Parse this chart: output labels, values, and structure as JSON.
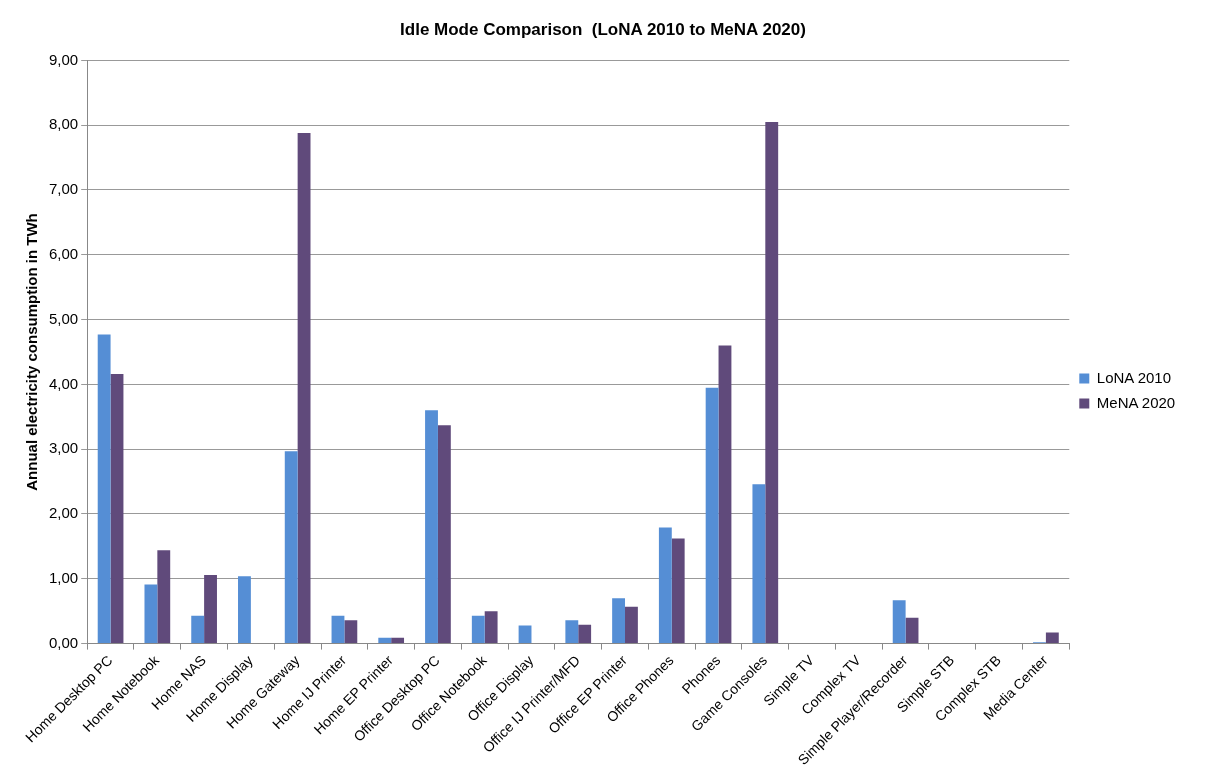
{
  "chart_data": {
    "type": "bar",
    "title": "Idle Mode Comparison  (LoNA 2010 to MeNA 2020)",
    "ylabel": "Annual electricity consumption in TWh",
    "categories": [
      "Home Desktop PC",
      "Home Notebook",
      "Home NAS",
      "Home Display",
      "Home Gateway",
      "Home IJ Printer",
      "Home EP Printer",
      "Office Desktop PC",
      "Office Notebook",
      "Office Display",
      "Office IJ Printer/MFD",
      "Office EP Printer",
      "Office Phones",
      "Phones",
      "Game Consoles",
      "Simple TV",
      "Complex TV",
      "Simple Player/Recorder",
      "Simple STB",
      "Complex STB",
      "Media Center"
    ],
    "series": [
      {
        "name": "LoNA 2010",
        "color": "#558ed5",
        "values": [
          4.77,
          0.91,
          0.43,
          1.04,
          2.97,
          0.43,
          0.09,
          3.6,
          0.43,
          0.28,
          0.36,
          0.7,
          1.79,
          3.95,
          2.46,
          0,
          0,
          0.67,
          0,
          0,
          0.02
        ]
      },
      {
        "name": "MeNA 2020",
        "color": "#604a7b",
        "values": [
          4.16,
          1.44,
          1.06,
          0,
          7.88,
          0.36,
          0.09,
          3.37,
          0.5,
          0,
          0.29,
          0.57,
          1.62,
          4.6,
          8.05,
          0,
          0,
          0.4,
          0,
          0,
          0.17
        ]
      }
    ],
    "ylim": [
      0,
      9
    ],
    "yticks": [
      {
        "value": 0,
        "label": "0,00"
      },
      {
        "value": 1,
        "label": "1,00"
      },
      {
        "value": 2,
        "label": "2,00"
      },
      {
        "value": 3,
        "label": "3,00"
      },
      {
        "value": 4,
        "label": "4,00"
      },
      {
        "value": 5,
        "label": "5,00"
      },
      {
        "value": 6,
        "label": "6,00"
      },
      {
        "value": 7,
        "label": "7,00"
      },
      {
        "value": 8,
        "label": "8,00"
      },
      {
        "value": 9,
        "label": "9,00"
      }
    ],
    "grid": "y",
    "legend": "right"
  }
}
